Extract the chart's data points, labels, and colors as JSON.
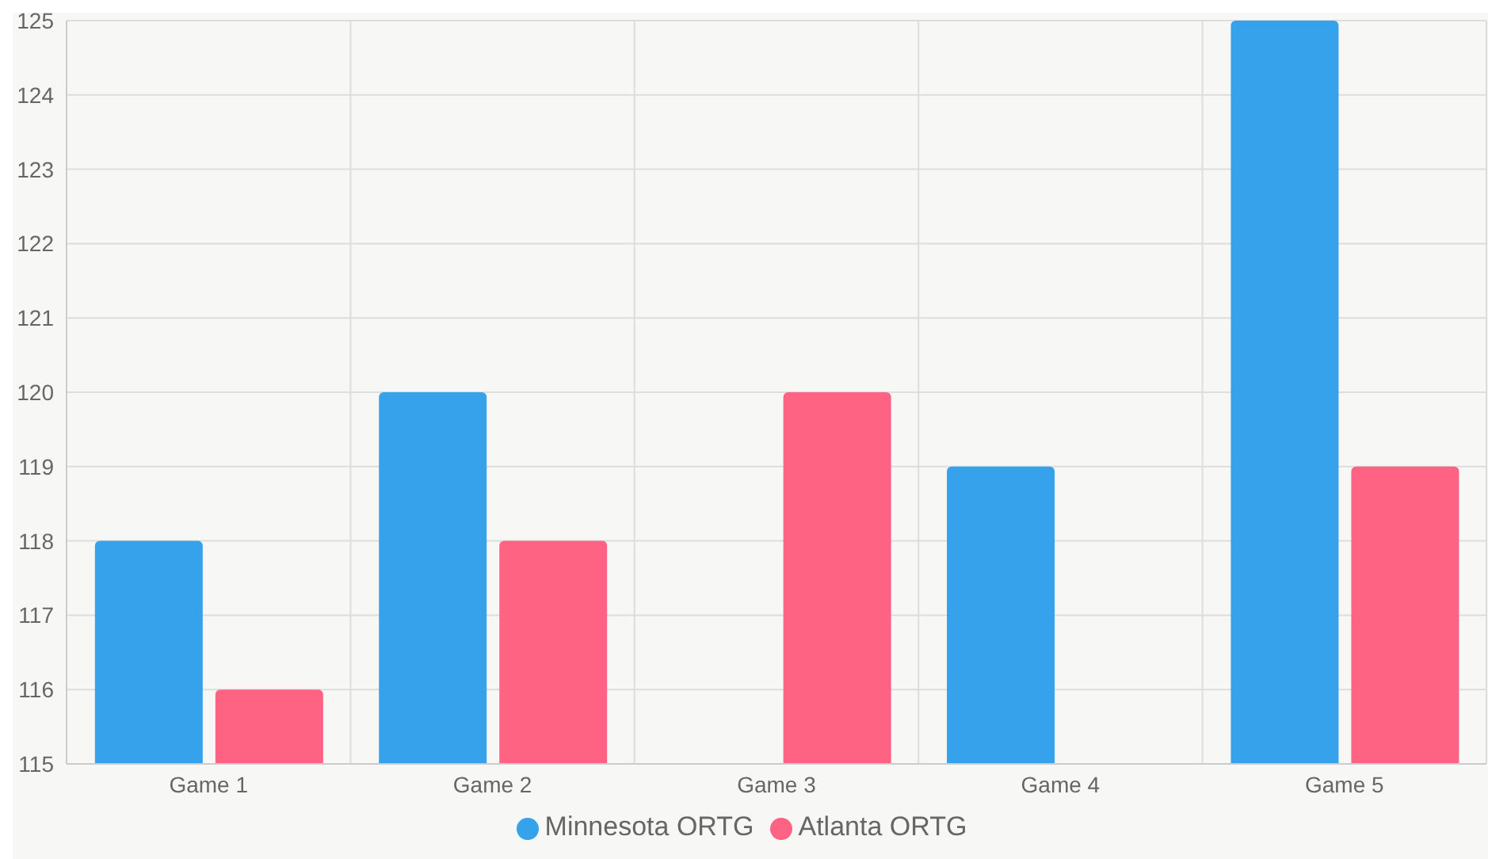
{
  "chart_data": {
    "type": "bar",
    "categories": [
      "Game 1",
      "Game 2",
      "Game 3",
      "Game 4",
      "Game 5"
    ],
    "series": [
      {
        "name": "Minnesota ORTG",
        "color": "#36a2eb",
        "values": [
          118,
          120,
          null,
          119,
          125
        ]
      },
      {
        "name": "Atlanta ORTG",
        "color": "#ff6384",
        "values": [
          116,
          118,
          120,
          null,
          119
        ]
      }
    ],
    "ylim": [
      115,
      125
    ],
    "yticks": [
      115,
      116,
      117,
      118,
      119,
      120,
      121,
      122,
      123,
      124,
      125
    ],
    "grid": true,
    "legend": "bottom"
  }
}
